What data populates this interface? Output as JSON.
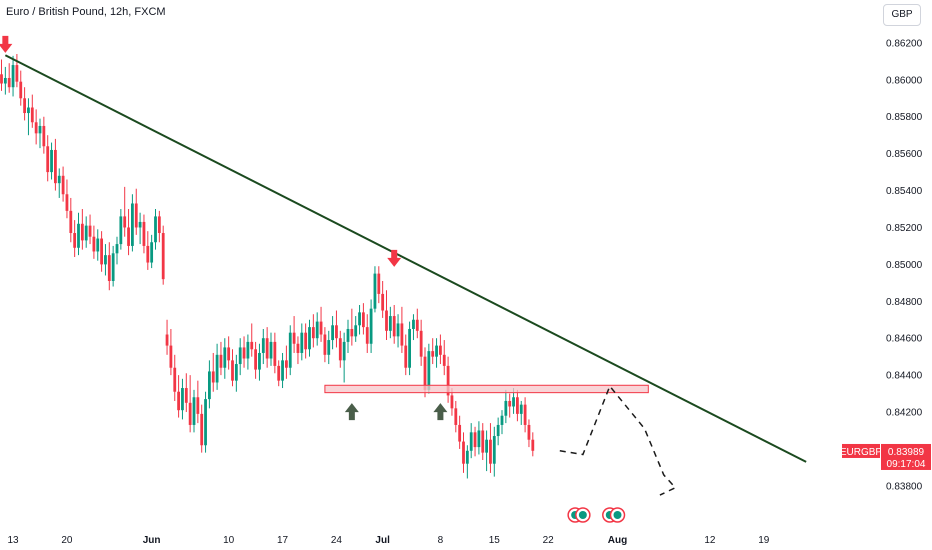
{
  "header": {
    "title": "Euro / British Pound, 12h, FXCM",
    "currency_button": "GBP"
  },
  "price_label": {
    "symbol": "EURGBP",
    "price": "0.83989",
    "countdown": "09:17:04",
    "color": "#f23645"
  },
  "colors": {
    "up": "#089981",
    "down": "#f23645",
    "trendline": "#1b4a1f",
    "zone_fill": "#f7c6c9",
    "zone_border": "#f23645",
    "arrow_down": "#f23645",
    "arrow_up": "#4a5e4a",
    "projection": "#1a1a1a"
  },
  "chart_data": {
    "type": "candlestick",
    "title": "Euro / British Pound, 12h, FXCM",
    "ylim": [
      0.8368,
      0.8627
    ],
    "y_ticks": [
      "0.86200",
      "0.86000",
      "0.85800",
      "0.85600",
      "0.85400",
      "0.85200",
      "0.85000",
      "0.84800",
      "0.84600",
      "0.84400",
      "0.84200",
      "0.83800"
    ],
    "y_tick_values": [
      0.862,
      0.86,
      0.858,
      0.856,
      0.854,
      0.852,
      0.85,
      0.848,
      0.846,
      0.844,
      0.842,
      0.838
    ],
    "x_ticks": [
      "13",
      "20",
      "Jun",
      "10",
      "17",
      "24",
      "Jul",
      "8",
      "15",
      "22",
      "Aug",
      "12",
      "19"
    ],
    "x_tick_index": [
      3,
      17,
      39,
      59,
      73,
      87,
      99,
      114,
      128,
      142,
      160,
      184,
      198
    ],
    "candles": [
      [
        0.8603,
        0.8611,
        0.8594,
        0.8598
      ],
      [
        0.8598,
        0.8607,
        0.8592,
        0.8601
      ],
      [
        0.8601,
        0.8609,
        0.8593,
        0.8596
      ],
      [
        0.8596,
        0.8613,
        0.8591,
        0.8608
      ],
      [
        0.8608,
        0.8614,
        0.8596,
        0.8599
      ],
      [
        0.8599,
        0.8605,
        0.8586,
        0.859
      ],
      [
        0.859,
        0.8596,
        0.8578,
        0.8582
      ],
      [
        0.8582,
        0.859,
        0.857,
        0.8585
      ],
      [
        0.8585,
        0.8592,
        0.8574,
        0.8577
      ],
      [
        0.8577,
        0.8584,
        0.8565,
        0.8571
      ],
      [
        0.8571,
        0.8579,
        0.8563,
        0.8575
      ],
      [
        0.8575,
        0.858,
        0.856,
        0.8564
      ],
      [
        0.8564,
        0.857,
        0.8545,
        0.855
      ],
      [
        0.855,
        0.8566,
        0.8546,
        0.8562
      ],
      [
        0.8562,
        0.8568,
        0.854,
        0.8544
      ],
      [
        0.8544,
        0.8552,
        0.8536,
        0.8548
      ],
      [
        0.8548,
        0.8553,
        0.8534,
        0.8538
      ],
      [
        0.8538,
        0.8546,
        0.8525,
        0.8529
      ],
      [
        0.8529,
        0.8536,
        0.8512,
        0.8517
      ],
      [
        0.8517,
        0.8524,
        0.8504,
        0.8509
      ],
      [
        0.8509,
        0.8528,
        0.8505,
        0.8522
      ],
      [
        0.8522,
        0.853,
        0.8508,
        0.8513
      ],
      [
        0.8513,
        0.8526,
        0.8509,
        0.8521
      ],
      [
        0.8521,
        0.8527,
        0.8511,
        0.8515
      ],
      [
        0.8515,
        0.8521,
        0.8503,
        0.8507
      ],
      [
        0.8507,
        0.8519,
        0.8502,
        0.8514
      ],
      [
        0.8514,
        0.8518,
        0.8496,
        0.85
      ],
      [
        0.85,
        0.8511,
        0.8494,
        0.8505
      ],
      [
        0.8505,
        0.8512,
        0.8486,
        0.8491
      ],
      [
        0.8491,
        0.851,
        0.8488,
        0.8506
      ],
      [
        0.8506,
        0.8515,
        0.85,
        0.8511
      ],
      [
        0.8511,
        0.853,
        0.8508,
        0.8526
      ],
      [
        0.8526,
        0.8542,
        0.8515,
        0.852
      ],
      [
        0.852,
        0.853,
        0.8505,
        0.851
      ],
      [
        0.851,
        0.8538,
        0.8507,
        0.8533
      ],
      [
        0.8533,
        0.8541,
        0.8516,
        0.852
      ],
      [
        0.852,
        0.8528,
        0.8511,
        0.8523
      ],
      [
        0.8523,
        0.8527,
        0.8506,
        0.851
      ],
      [
        0.851,
        0.8518,
        0.8497,
        0.8501
      ],
      [
        0.8501,
        0.8516,
        0.8498,
        0.8512
      ],
      [
        0.8512,
        0.853,
        0.8508,
        0.8526
      ],
      [
        0.8526,
        0.8529,
        0.8512,
        0.8517
      ],
      [
        0.8517,
        0.8521,
        0.8489,
        0.8492
      ],
      [
        0.8462,
        0.847,
        0.8451,
        0.8456
      ],
      [
        0.8456,
        0.8465,
        0.844,
        0.8444
      ],
      [
        0.8444,
        0.8451,
        0.8426,
        0.8431
      ],
      [
        0.8431,
        0.844,
        0.8417,
        0.8421
      ],
      [
        0.8421,
        0.8438,
        0.8416,
        0.8433
      ],
      [
        0.8433,
        0.8441,
        0.842,
        0.8425
      ],
      [
        0.8425,
        0.844,
        0.8409,
        0.8413
      ],
      [
        0.8413,
        0.8432,
        0.8409,
        0.8428
      ],
      [
        0.8428,
        0.8437,
        0.8414,
        0.8419
      ],
      [
        0.8419,
        0.8424,
        0.8398,
        0.8402
      ],
      [
        0.8402,
        0.8431,
        0.8398,
        0.8427
      ],
      [
        0.8427,
        0.8448,
        0.8422,
        0.8442
      ],
      [
        0.8442,
        0.8452,
        0.8431,
        0.8436
      ],
      [
        0.8436,
        0.8457,
        0.8432,
        0.8451
      ],
      [
        0.8451,
        0.8458,
        0.844,
        0.8444
      ],
      [
        0.8444,
        0.846,
        0.8438,
        0.8455
      ],
      [
        0.8455,
        0.8461,
        0.8443,
        0.8448
      ],
      [
        0.8448,
        0.8454,
        0.8434,
        0.8437
      ],
      [
        0.8437,
        0.8451,
        0.8431,
        0.8446
      ],
      [
        0.8446,
        0.846,
        0.844,
        0.8455
      ],
      [
        0.8455,
        0.8461,
        0.8444,
        0.8449
      ],
      [
        0.8449,
        0.8462,
        0.8443,
        0.8458
      ],
      [
        0.8458,
        0.8468,
        0.845,
        0.8454
      ],
      [
        0.8454,
        0.8458,
        0.8438,
        0.8443
      ],
      [
        0.8443,
        0.8457,
        0.8437,
        0.8452
      ],
      [
        0.8452,
        0.8465,
        0.8446,
        0.846
      ],
      [
        0.846,
        0.8466,
        0.8444,
        0.8449
      ],
      [
        0.8449,
        0.8463,
        0.8445,
        0.8458
      ],
      [
        0.8458,
        0.8463,
        0.8441,
        0.8445
      ],
      [
        0.8445,
        0.8448,
        0.8434,
        0.8437
      ],
      [
        0.8437,
        0.8452,
        0.8433,
        0.8448
      ],
      [
        0.8448,
        0.8456,
        0.8438,
        0.8444
      ],
      [
        0.8444,
        0.8467,
        0.844,
        0.8463
      ],
      [
        0.8463,
        0.8472,
        0.8452,
        0.8457
      ],
      [
        0.8457,
        0.8461,
        0.8446,
        0.8452
      ],
      [
        0.8452,
        0.8468,
        0.8448,
        0.8463
      ],
      [
        0.8463,
        0.8468,
        0.8449,
        0.8454
      ],
      [
        0.8454,
        0.847,
        0.845,
        0.8466
      ],
      [
        0.8466,
        0.8473,
        0.8455,
        0.846
      ],
      [
        0.846,
        0.8474,
        0.8456,
        0.8469
      ],
      [
        0.8469,
        0.8477,
        0.8458,
        0.8462
      ],
      [
        0.8462,
        0.8466,
        0.8447,
        0.8451
      ],
      [
        0.8451,
        0.8464,
        0.8446,
        0.8459
      ],
      [
        0.8459,
        0.8472,
        0.8454,
        0.8467
      ],
      [
        0.8467,
        0.8475,
        0.8455,
        0.846
      ],
      [
        0.846,
        0.8464,
        0.8444,
        0.8448
      ],
      [
        0.8448,
        0.8463,
        0.8436,
        0.8458
      ],
      [
        0.8458,
        0.847,
        0.8452,
        0.8465
      ],
      [
        0.8465,
        0.8476,
        0.8456,
        0.8461
      ],
      [
        0.8461,
        0.8472,
        0.8458,
        0.8467
      ],
      [
        0.8467,
        0.8478,
        0.8462,
        0.8474
      ],
      [
        0.8474,
        0.8479,
        0.8462,
        0.8466
      ],
      [
        0.8466,
        0.8473,
        0.8452,
        0.8457
      ],
      [
        0.8457,
        0.8481,
        0.8452,
        0.8476
      ],
      [
        0.8476,
        0.8499,
        0.8474,
        0.8495
      ],
      [
        0.8495,
        0.8499,
        0.8479,
        0.8484
      ],
      [
        0.8484,
        0.8491,
        0.8471,
        0.8475
      ],
      [
        0.8475,
        0.8486,
        0.8459,
        0.8464
      ],
      [
        0.8464,
        0.8477,
        0.846,
        0.8472
      ],
      [
        0.8472,
        0.8478,
        0.8457,
        0.8461
      ],
      [
        0.8461,
        0.8473,
        0.8455,
        0.8468
      ],
      [
        0.8468,
        0.8477,
        0.8452,
        0.8456
      ],
      [
        0.8456,
        0.8462,
        0.844,
        0.8444
      ],
      [
        0.8444,
        0.8469,
        0.844,
        0.8465
      ],
      [
        0.8465,
        0.8473,
        0.8459,
        0.847
      ],
      [
        0.847,
        0.8476,
        0.846,
        0.8464
      ],
      [
        0.8464,
        0.847,
        0.8445,
        0.845
      ],
      [
        0.845,
        0.8455,
        0.8428,
        0.8432
      ],
      [
        0.8432,
        0.8457,
        0.843,
        0.8453
      ],
      [
        0.8453,
        0.846,
        0.8446,
        0.845
      ],
      [
        0.845,
        0.846,
        0.8444,
        0.8456
      ],
      [
        0.8456,
        0.8462,
        0.8446,
        0.8451
      ],
      [
        0.8451,
        0.8459,
        0.844,
        0.8445
      ],
      [
        0.8445,
        0.845,
        0.8425,
        0.8429
      ],
      [
        0.8429,
        0.8433,
        0.8418,
        0.8422
      ],
      [
        0.8422,
        0.8426,
        0.8409,
        0.8413
      ],
      [
        0.8413,
        0.8418,
        0.84,
        0.8404
      ],
      [
        0.8404,
        0.8409,
        0.8387,
        0.8392
      ],
      [
        0.8392,
        0.8402,
        0.8384,
        0.8399
      ],
      [
        0.8399,
        0.8414,
        0.8395,
        0.8409
      ],
      [
        0.8409,
        0.8412,
        0.8396,
        0.8401
      ],
      [
        0.8401,
        0.8415,
        0.8397,
        0.841
      ],
      [
        0.841,
        0.8414,
        0.8394,
        0.8398
      ],
      [
        0.8398,
        0.841,
        0.8388,
        0.8405
      ],
      [
        0.8405,
        0.8414,
        0.8387,
        0.8392
      ],
      [
        0.8392,
        0.8412,
        0.8385,
        0.8407
      ],
      [
        0.8407,
        0.8417,
        0.8402,
        0.8413
      ],
      [
        0.8413,
        0.8421,
        0.8408,
        0.8418
      ],
      [
        0.8418,
        0.8432,
        0.8414,
        0.8426
      ],
      [
        0.8426,
        0.843,
        0.8417,
        0.8423
      ],
      [
        0.8423,
        0.8433,
        0.8419,
        0.8428
      ],
      [
        0.8428,
        0.8432,
        0.8415,
        0.8419
      ],
      [
        0.8419,
        0.8426,
        0.8413,
        0.8424
      ],
      [
        0.8424,
        0.8428,
        0.8409,
        0.8413
      ],
      [
        0.8413,
        0.8416,
        0.8401,
        0.8405
      ],
      [
        0.8405,
        0.8409,
        0.8396,
        0.8399
      ]
    ],
    "trendline": {
      "start": [
        1,
        0.86133
      ],
      "end": [
        209,
        0.8393
      ]
    },
    "zone": {
      "x": [
        84,
        168
      ],
      "y": [
        0.84305,
        0.84345
      ]
    },
    "arrows_down": [
      [
        1,
        0.8613
      ],
      [
        102,
        0.8497
      ]
    ],
    "arrows_up": [
      [
        91,
        0.8427
      ],
      [
        114,
        0.8427
      ]
    ],
    "projection": [
      [
        145,
        0.8399
      ],
      [
        151,
        0.8397
      ],
      [
        158,
        0.8434
      ],
      [
        167,
        0.8411
      ],
      [
        172,
        0.8386
      ],
      [
        175,
        0.8379
      ],
      [
        171,
        0.8375
      ]
    ],
    "event_markers": [
      149,
      151,
      158,
      160
    ],
    "last_price": 0.83989
  }
}
